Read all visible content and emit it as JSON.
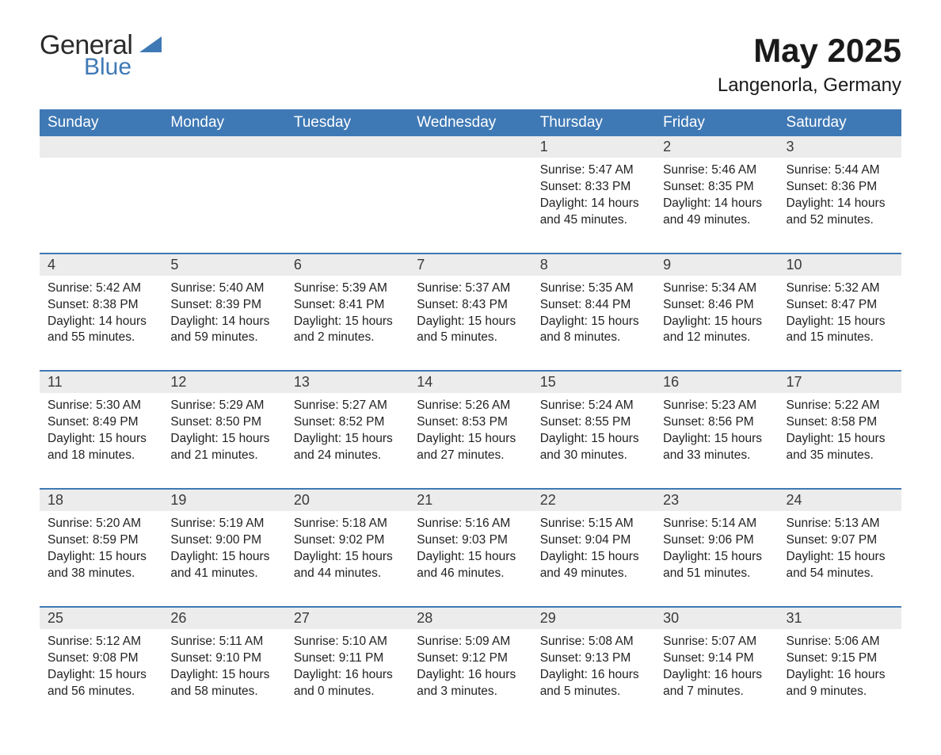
{
  "logo": {
    "text1": "General",
    "text2": "Blue",
    "tri_color": "#3f79b5"
  },
  "header": {
    "title": "May 2025",
    "location": "Langenorla, Germany"
  },
  "colors": {
    "header_bg": "#3f79b5",
    "header_fg": "#ffffff",
    "daynum_bg": "#ececec",
    "row_border": "#3f79b5",
    "body_text": "#222222",
    "page_bg": "#ffffff"
  },
  "font": {
    "family": "Arial",
    "title_size": 42,
    "subtitle_size": 24,
    "th_size": 19,
    "daynum_size": 18,
    "detail_size": 15.5
  },
  "day_labels": [
    "Sunday",
    "Monday",
    "Tuesday",
    "Wednesday",
    "Thursday",
    "Friday",
    "Saturday"
  ],
  "labels": {
    "sunrise": "Sunrise: ",
    "sunset": "Sunset: ",
    "daylight": "Daylight: "
  },
  "weeks": [
    [
      null,
      null,
      null,
      null,
      {
        "n": "1",
        "sunrise": "5:47 AM",
        "sunset": "8:33 PM",
        "daylight": "14 hours and 45 minutes."
      },
      {
        "n": "2",
        "sunrise": "5:46 AM",
        "sunset": "8:35 PM",
        "daylight": "14 hours and 49 minutes."
      },
      {
        "n": "3",
        "sunrise": "5:44 AM",
        "sunset": "8:36 PM",
        "daylight": "14 hours and 52 minutes."
      }
    ],
    [
      {
        "n": "4",
        "sunrise": "5:42 AM",
        "sunset": "8:38 PM",
        "daylight": "14 hours and 55 minutes."
      },
      {
        "n": "5",
        "sunrise": "5:40 AM",
        "sunset": "8:39 PM",
        "daylight": "14 hours and 59 minutes."
      },
      {
        "n": "6",
        "sunrise": "5:39 AM",
        "sunset": "8:41 PM",
        "daylight": "15 hours and 2 minutes."
      },
      {
        "n": "7",
        "sunrise": "5:37 AM",
        "sunset": "8:43 PM",
        "daylight": "15 hours and 5 minutes."
      },
      {
        "n": "8",
        "sunrise": "5:35 AM",
        "sunset": "8:44 PM",
        "daylight": "15 hours and 8 minutes."
      },
      {
        "n": "9",
        "sunrise": "5:34 AM",
        "sunset": "8:46 PM",
        "daylight": "15 hours and 12 minutes."
      },
      {
        "n": "10",
        "sunrise": "5:32 AM",
        "sunset": "8:47 PM",
        "daylight": "15 hours and 15 minutes."
      }
    ],
    [
      {
        "n": "11",
        "sunrise": "5:30 AM",
        "sunset": "8:49 PM",
        "daylight": "15 hours and 18 minutes."
      },
      {
        "n": "12",
        "sunrise": "5:29 AM",
        "sunset": "8:50 PM",
        "daylight": "15 hours and 21 minutes."
      },
      {
        "n": "13",
        "sunrise": "5:27 AM",
        "sunset": "8:52 PM",
        "daylight": "15 hours and 24 minutes."
      },
      {
        "n": "14",
        "sunrise": "5:26 AM",
        "sunset": "8:53 PM",
        "daylight": "15 hours and 27 minutes."
      },
      {
        "n": "15",
        "sunrise": "5:24 AM",
        "sunset": "8:55 PM",
        "daylight": "15 hours and 30 minutes."
      },
      {
        "n": "16",
        "sunrise": "5:23 AM",
        "sunset": "8:56 PM",
        "daylight": "15 hours and 33 minutes."
      },
      {
        "n": "17",
        "sunrise": "5:22 AM",
        "sunset": "8:58 PM",
        "daylight": "15 hours and 35 minutes."
      }
    ],
    [
      {
        "n": "18",
        "sunrise": "5:20 AM",
        "sunset": "8:59 PM",
        "daylight": "15 hours and 38 minutes."
      },
      {
        "n": "19",
        "sunrise": "5:19 AM",
        "sunset": "9:00 PM",
        "daylight": "15 hours and 41 minutes."
      },
      {
        "n": "20",
        "sunrise": "5:18 AM",
        "sunset": "9:02 PM",
        "daylight": "15 hours and 44 minutes."
      },
      {
        "n": "21",
        "sunrise": "5:16 AM",
        "sunset": "9:03 PM",
        "daylight": "15 hours and 46 minutes."
      },
      {
        "n": "22",
        "sunrise": "5:15 AM",
        "sunset": "9:04 PM",
        "daylight": "15 hours and 49 minutes."
      },
      {
        "n": "23",
        "sunrise": "5:14 AM",
        "sunset": "9:06 PM",
        "daylight": "15 hours and 51 minutes."
      },
      {
        "n": "24",
        "sunrise": "5:13 AM",
        "sunset": "9:07 PM",
        "daylight": "15 hours and 54 minutes."
      }
    ],
    [
      {
        "n": "25",
        "sunrise": "5:12 AM",
        "sunset": "9:08 PM",
        "daylight": "15 hours and 56 minutes."
      },
      {
        "n": "26",
        "sunrise": "5:11 AM",
        "sunset": "9:10 PM",
        "daylight": "15 hours and 58 minutes."
      },
      {
        "n": "27",
        "sunrise": "5:10 AM",
        "sunset": "9:11 PM",
        "daylight": "16 hours and 0 minutes."
      },
      {
        "n": "28",
        "sunrise": "5:09 AM",
        "sunset": "9:12 PM",
        "daylight": "16 hours and 3 minutes."
      },
      {
        "n": "29",
        "sunrise": "5:08 AM",
        "sunset": "9:13 PM",
        "daylight": "16 hours and 5 minutes."
      },
      {
        "n": "30",
        "sunrise": "5:07 AM",
        "sunset": "9:14 PM",
        "daylight": "16 hours and 7 minutes."
      },
      {
        "n": "31",
        "sunrise": "5:06 AM",
        "sunset": "9:15 PM",
        "daylight": "16 hours and 9 minutes."
      }
    ]
  ]
}
